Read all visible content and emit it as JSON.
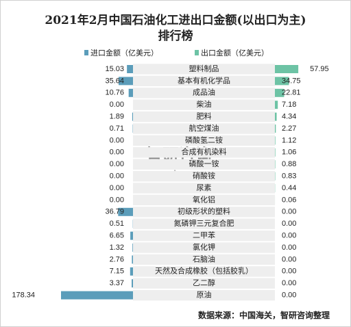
{
  "chart_data": {
    "type": "butterfly-bar",
    "title": "2021年2月中国石油化工进出口金额(以出口为主)排行榜",
    "categories": [
      "塑料制品",
      "基本有机化学品",
      "成品油",
      "柴油",
      "肥料",
      "航空煤油",
      "磷酸氢二铵",
      "合成有机染料",
      "磷酸一铵",
      "硝酸铵",
      "尿素",
      "氧化铝",
      "初级形状的塑料",
      "氮磷钾三元复合肥",
      "二甲苯",
      "氯化钾",
      "石脑油",
      "天然及合成橡胶（包括胶乳）",
      "乙二醇",
      "原油"
    ],
    "series": [
      {
        "name": "进口金额（亿美元）",
        "color": "#5b9dba",
        "values": [
          15.03,
          35.64,
          10.76,
          0.0,
          1.89,
          0.71,
          0.0,
          0.0,
          0.0,
          0.0,
          0.0,
          0.0,
          36.79,
          0.51,
          6.65,
          1.32,
          2.76,
          7.15,
          3.37,
          178.34
        ]
      },
      {
        "name": "出口金额（亿美元）",
        "color": "#6dc3a5",
        "values": [
          57.95,
          34.75,
          22.81,
          7.18,
          4.34,
          2.27,
          1.12,
          1.06,
          0.88,
          0.83,
          0.44,
          0.06,
          0.0,
          0.0,
          0.0,
          0.0,
          0.0,
          0.0,
          0.0,
          0.0
        ]
      }
    ],
    "source": "数据来源：中国海关，智研咨询整理",
    "watermark": [
      "智研咨询",
      "www.chyxx.com"
    ]
  }
}
